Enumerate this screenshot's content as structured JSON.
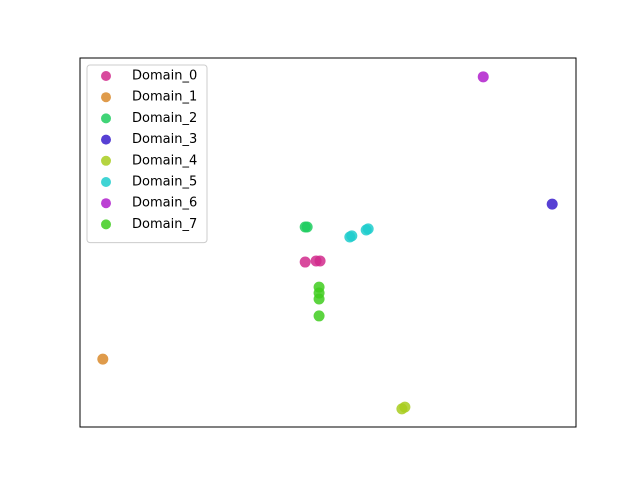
{
  "chart_data": {
    "type": "scatter",
    "xlim": [
      0,
      100
    ],
    "ylim": [
      0,
      100
    ],
    "legend": "upper left",
    "series": [
      {
        "name": "Domain_0",
        "color": "#d12a8c",
        "x": [
          45.4,
          47.6,
          48.4
        ],
        "values": [
          44.7,
          45.0,
          45.0
        ]
      },
      {
        "name": "Domain_1",
        "color": "#d9892b",
        "x": [
          4.6
        ],
        "values": [
          18.4
        ]
      },
      {
        "name": "Domain_2",
        "color": "#1fcc5f",
        "x": [
          45.4,
          45.8
        ],
        "values": [
          54.2,
          54.2
        ]
      },
      {
        "name": "Domain_3",
        "color": "#3a1fcc",
        "x": [
          95.2
        ],
        "values": [
          60.4
        ]
      },
      {
        "name": "Domain_4",
        "color": "#a8cc1f",
        "x": [
          64.9,
          65.5
        ],
        "values": [
          4.9,
          5.4
        ]
      },
      {
        "name": "Domain_5",
        "color": "#1fcccc",
        "x": [
          54.4,
          54.8,
          57.7,
          58.1
        ],
        "values": [
          51.5,
          51.8,
          53.4,
          53.7
        ]
      },
      {
        "name": "Domain_6",
        "color": "#b01fcc",
        "x": [
          81.3
        ],
        "values": [
          94.9
        ]
      },
      {
        "name": "Domain_7",
        "color": "#3fcc1f",
        "x": [
          48.2,
          48.2,
          48.2,
          48.2
        ],
        "values": [
          37.9,
          36.3,
          34.7,
          30.1
        ]
      }
    ]
  }
}
